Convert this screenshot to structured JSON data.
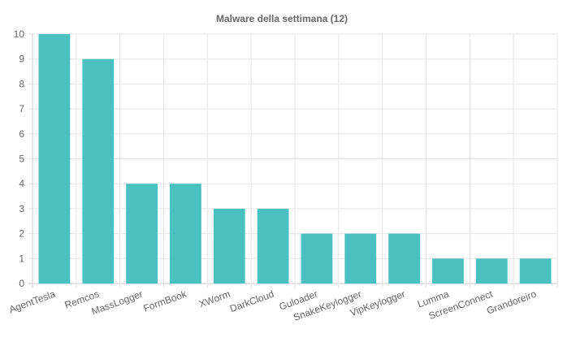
{
  "chart_data": {
    "type": "bar",
    "title": "Malware della settimana (12)",
    "categories": [
      "AgentTesla",
      "Remcos",
      "MassLogger",
      "FormBook",
      "XWorm",
      "DarkCloud",
      "Guloader",
      "SnakeKeylogger",
      "VipKeylogger",
      "Lumma",
      "ScreenConnect",
      "Grandoreiro"
    ],
    "values": [
      10,
      9,
      4,
      4,
      3,
      3,
      2,
      2,
      2,
      1,
      1,
      1
    ],
    "ylim": [
      0,
      10
    ],
    "yticks": [
      "0",
      "1",
      "2",
      "3",
      "4",
      "5",
      "6",
      "7",
      "8",
      "9",
      "10"
    ],
    "xlabel": "",
    "ylabel": "",
    "grid": true,
    "colors": {
      "bar": "#4bc0c0",
      "text": "#666666",
      "grid": "#e5e5e5"
    }
  }
}
